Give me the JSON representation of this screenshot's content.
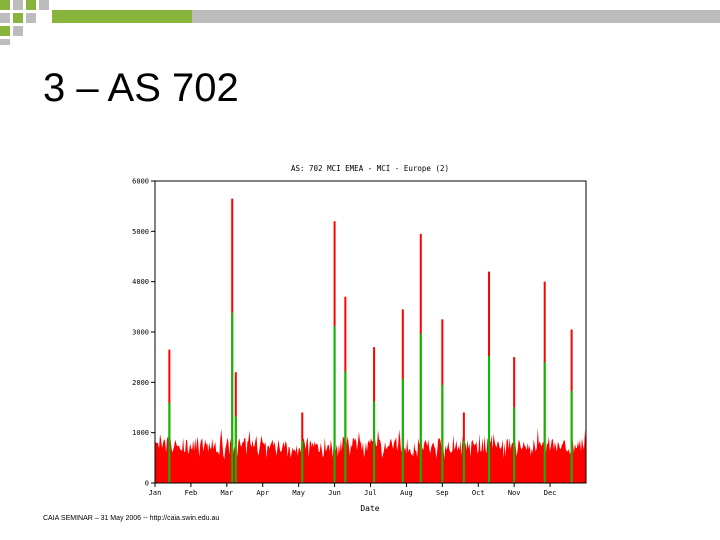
{
  "slide": {
    "title": "3 – AS 702",
    "footer": "CAIA SEMINAR – 31 May 2006 -- http://caia.swin.edu.au"
  },
  "colors": {
    "accent_green": "#89b43b",
    "accent_gray": "#bcbcbc",
    "series_total": "#ff0000",
    "series_base": "#00c000"
  },
  "chart_data": {
    "type": "area",
    "title": "AS: 702 MCI EMEA - MCI - Europe (2)",
    "xlabel": "Date",
    "ylabel": "",
    "categories": [
      "Jan",
      "Feb",
      "Mar",
      "Apr",
      "May",
      "Jun",
      "Jul",
      "Aug",
      "Sep",
      "Oct",
      "Nov",
      "Dec"
    ],
    "yticks": [
      0,
      1000,
      2000,
      3000,
      4000,
      5000,
      6000
    ],
    "ylim": [
      0,
      6000
    ],
    "grid": false,
    "legend": "none",
    "series": [
      {
        "baseline_level": 500,
        "noise_level": 900
      },
      {
        "spikes": [
          {
            "month": 0.4,
            "value": 2650
          },
          {
            "month": 2.15,
            "value": 5650
          },
          {
            "month": 2.25,
            "value": 2200
          },
          {
            "month": 4.1,
            "value": 1400
          },
          {
            "month": 5.0,
            "value": 5200
          },
          {
            "month": 5.3,
            "value": 3700
          },
          {
            "month": 6.1,
            "value": 2700
          },
          {
            "month": 6.9,
            "value": 3450
          },
          {
            "month": 7.4,
            "value": 4950
          },
          {
            "month": 8.0,
            "value": 3250
          },
          {
            "month": 8.6,
            "value": 1400
          },
          {
            "month": 9.3,
            "value": 4200
          },
          {
            "month": 10.0,
            "value": 2500
          },
          {
            "month": 10.85,
            "value": 4000
          },
          {
            "month": 11.6,
            "value": 3050
          }
        ]
      }
    ]
  }
}
